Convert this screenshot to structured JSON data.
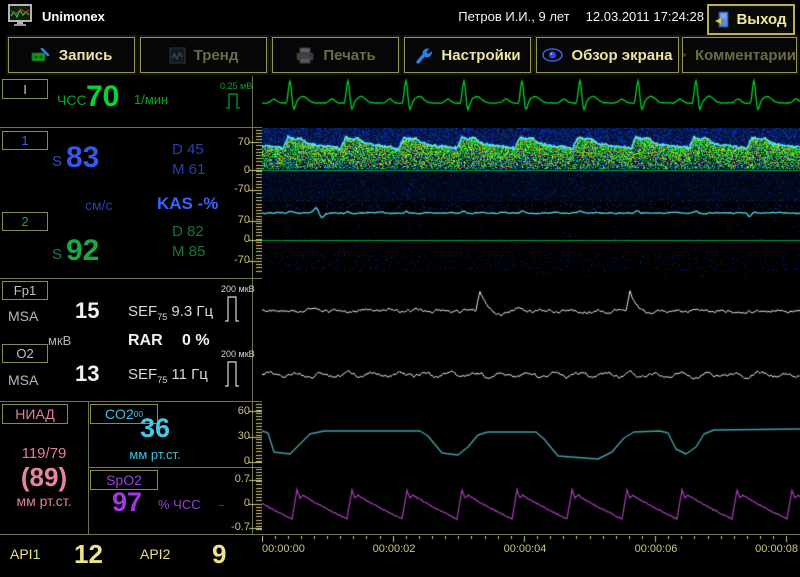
{
  "header": {
    "app_title": "Unimonex",
    "patient": "Петров И.И., 9 лет",
    "datetime": "12.03.2011 17:24:28",
    "exit_label": "Выход"
  },
  "toolbar": [
    {
      "label": "Запись",
      "enabled": true
    },
    {
      "label": "Тренд",
      "enabled": false
    },
    {
      "label": "Печать",
      "enabled": false
    },
    {
      "label": "Настройки",
      "enabled": true
    },
    {
      "label": "Обзор экрана",
      "enabled": true
    },
    {
      "label": "Комментарии",
      "enabled": false
    }
  ],
  "ecg": {
    "lead": "I",
    "hr_label": "ЧСС",
    "hr_value": "70",
    "hr_unit": "1/мин",
    "calib": "0.25 мВ"
  },
  "doppler": {
    "ch1": {
      "num": "1",
      "s_label": "S",
      "s_value": "83",
      "d": "D 45",
      "m": "M 61"
    },
    "unit": "см/с",
    "kas": "KAS -%",
    "ch2": {
      "num": "2",
      "s_label": "S",
      "s_value": "92",
      "d": "D 82",
      "m": "M 85"
    },
    "scale": [
      "70",
      "0",
      "-70"
    ]
  },
  "eeg": {
    "fp1": {
      "lead": "Fp1",
      "msa": "MSA",
      "value": "15",
      "sef": "SEF",
      "sef_sub": "75",
      "sef_value": "9.3 Гц",
      "calib": "200 мкВ"
    },
    "unit": "мкВ",
    "rar_label": "RAR",
    "rar_value": "0 %",
    "o2": {
      "lead": "O2",
      "msa": "MSA",
      "value": "13",
      "sef": "SEF",
      "sef_sub": "75",
      "sef_value": "11 Гц",
      "calib": "200 мкВ"
    }
  },
  "nibp": {
    "label": "НИАД",
    "sys_dia": "119/79",
    "map": "(89)",
    "unit": "мм рт.ст."
  },
  "co2": {
    "label": "CO2",
    "label_sub": "00",
    "value": "36",
    "unit": "мм рт.ст.",
    "scale": [
      "60",
      "30",
      "0"
    ]
  },
  "spo2": {
    "label": "SpO2",
    "value": "97",
    "unit": "% ЧСС",
    "trail": "--",
    "scale": [
      "0.7",
      "0",
      "-0.7"
    ]
  },
  "api": {
    "label1": "API1",
    "value1": "12",
    "label2": "API2",
    "value2": "9"
  },
  "timeline": [
    "00:00:00",
    "00:00:02",
    "00:00:04",
    "00:00:06",
    "00:00:08"
  ],
  "waveforms": {
    "heart_period": 58,
    "ecg_color": "#00d028",
    "spec_envelope_color": "#55e6ff",
    "zero_line_color": "#00a040",
    "ch2_line_color": "#45d8ea",
    "eeg_color": "#e4e4e4",
    "co2_color": "#3f9fa8",
    "spo2_color": "#9a3aaa",
    "tick_color": "#ccc67e",
    "co2_points": [
      [
        0,
        29
      ],
      [
        6,
        31
      ],
      [
        12,
        50
      ],
      [
        28,
        52
      ],
      [
        36,
        44
      ],
      [
        48,
        32
      ],
      [
        62,
        29
      ],
      [
        158,
        29
      ],
      [
        166,
        34
      ],
      [
        180,
        51
      ],
      [
        196,
        53
      ],
      [
        206,
        45
      ],
      [
        216,
        33
      ],
      [
        226,
        30
      ],
      [
        274,
        30
      ],
      [
        282,
        37
      ],
      [
        296,
        54
      ],
      [
        336,
        57
      ],
      [
        350,
        50
      ],
      [
        362,
        36
      ],
      [
        372,
        30
      ],
      [
        398,
        29
      ],
      [
        406,
        31
      ],
      [
        414,
        47
      ],
      [
        424,
        52
      ],
      [
        434,
        45
      ],
      [
        442,
        32
      ],
      [
        452,
        28
      ],
      [
        538,
        27
      ]
    ],
    "eeg_fp1_spikes": [
      [
        218,
        21
      ],
      [
        368,
        20
      ]
    ]
  }
}
